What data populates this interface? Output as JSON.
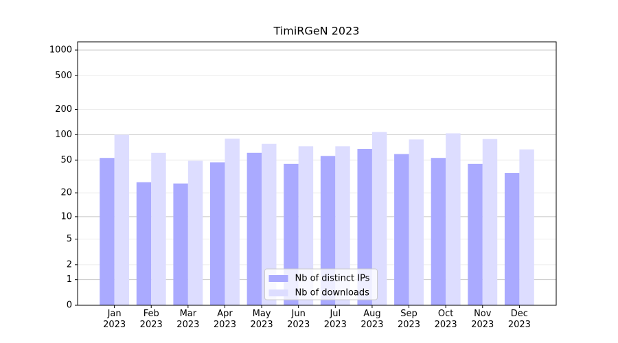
{
  "chart_data": {
    "type": "bar",
    "title": "TimiRGeN 2023",
    "categories": [
      "Jan 2023",
      "Feb 2023",
      "Mar 2023",
      "Apr 2023",
      "May 2023",
      "Jun 2023",
      "Jul 2023",
      "Aug 2023",
      "Sep 2023",
      "Oct 2023",
      "Nov 2023",
      "Dec 2023"
    ],
    "series": [
      {
        "name": "Nb of distinct IPs",
        "color": "#aaaaff",
        "values": [
          53,
          27,
          26,
          47,
          61,
          45,
          56,
          68,
          59,
          53,
          45,
          35
        ]
      },
      {
        "name": "Nb of downloads",
        "color": "#ddddff",
        "values": [
          100,
          61,
          49,
          90,
          78,
          73,
          73,
          108,
          88,
          104,
          89,
          67
        ]
      }
    ],
    "yscale": "log1p",
    "ylim": [
      0,
      1250
    ],
    "yticks": [
      0,
      1,
      2,
      5,
      10,
      20,
      50,
      100,
      200,
      500,
      1000
    ],
    "grid": true,
    "legend": "lower center"
  }
}
